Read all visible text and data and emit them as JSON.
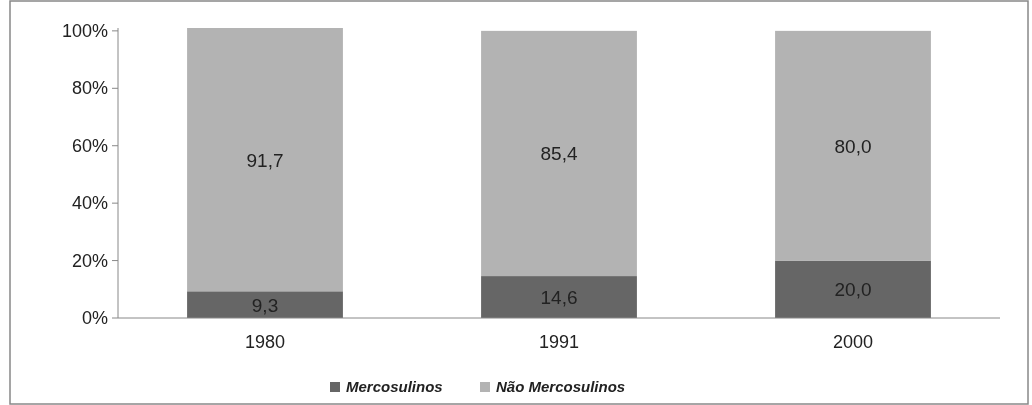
{
  "chart_data": {
    "type": "bar",
    "stacked": true,
    "categories": [
      "1980",
      "1991",
      "2000"
    ],
    "series": [
      {
        "name": "Mercosulinos",
        "color": "#666666",
        "values": [
          9.3,
          14.6,
          20.0
        ],
        "value_labels": [
          "9,3",
          "14,6",
          "20,0"
        ]
      },
      {
        "name": "Não Mercosulinos",
        "color": "#b3b3b3",
        "values": [
          91.7,
          85.4,
          80.0
        ],
        "value_labels": [
          "91,7",
          "85,4",
          "80,0"
        ]
      }
    ],
    "ylim": [
      0,
      101
    ],
    "yticks": [
      {
        "value": 0,
        "label": "0%"
      },
      {
        "value": 20,
        "label": "20%"
      },
      {
        "value": 40,
        "label": "40%"
      },
      {
        "value": 60,
        "label": "60%"
      },
      {
        "value": 80,
        "label": "80%"
      },
      {
        "value": 100,
        "label": "100%"
      }
    ],
    "grid": false,
    "legend": "bottom"
  }
}
